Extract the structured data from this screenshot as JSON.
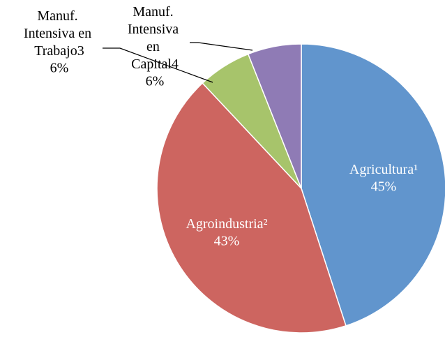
{
  "chart_data": {
    "type": "pie",
    "categories": [
      "Agricultura¹",
      "Agroindustria²",
      "Manuf. Intensiva en Trabajo3",
      "Manuf. Intensiva en Capital4"
    ],
    "values": [
      45,
      43,
      6,
      6
    ],
    "value_labels": [
      "45%",
      "43%",
      "6%",
      "6%"
    ],
    "colors": [
      "#6195cd",
      "#cd6560",
      "#a7c46b",
      "#8f7bb5"
    ]
  }
}
